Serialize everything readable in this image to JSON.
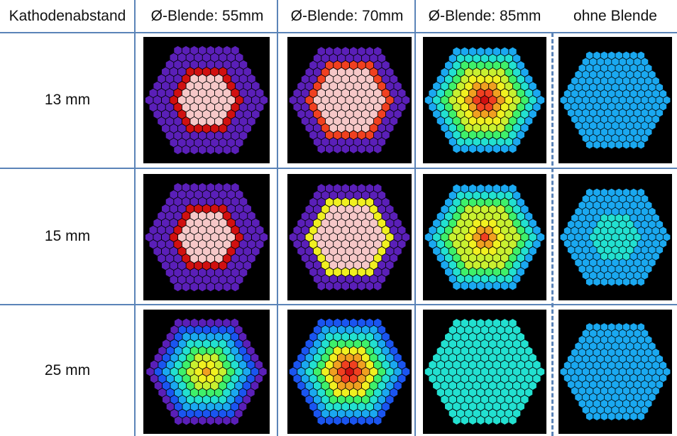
{
  "header": {
    "corner": "Kathodenabstand",
    "columns": [
      "Ø-Blende: 55mm",
      "Ø-Blende: 70mm",
      "Ø-Blende: 85mm",
      "ohne Blende"
    ]
  },
  "rows": [
    {
      "label": "13 mm"
    },
    {
      "label": "15 mm"
    },
    {
      "label": "25 mm"
    }
  ],
  "colors": {
    "background": "#000000",
    "grid_line": "#5b84b8",
    "scale": [
      "#3d1470",
      "#5a1fb8",
      "#1a55f0",
      "#1aa8f0",
      "#22e0d0",
      "#3ef06a",
      "#c8f030",
      "#f0f020",
      "#f0a020",
      "#f04020",
      "#d01010",
      "#f6c8c8"
    ]
  },
  "heatmaps": {
    "note_levels": "level per hex from 0 (dark purple) to 11 (pink saturated)",
    "cells": [
      [
        {
          "mode": "flat",
          "core": 11,
          "edge": 1,
          "r1": 0.55,
          "r2": 0.72
        },
        {
          "mode": "flat",
          "core": 11,
          "edge": 1,
          "r1": 0.68,
          "r2": 0.86
        },
        {
          "mode": "peak",
          "core": 10,
          "edge": 3,
          "r1": 0.0,
          "r2": 1.0
        },
        {
          "mode": "flat",
          "core": 3,
          "edge": 3,
          "r1": 0.0,
          "r2": 1.0
        }
      ],
      [
        {
          "mode": "flat",
          "core": 11,
          "edge": 1,
          "r1": 0.55,
          "r2": 0.72
        },
        {
          "mode": "flat",
          "core": 11,
          "edge": 1,
          "r1": 0.62,
          "r2": 0.84
        },
        {
          "mode": "peak",
          "core": 9,
          "edge": 3,
          "r1": 0.0,
          "r2": 1.0
        },
        {
          "mode": "flat",
          "core": 4,
          "edge": 3,
          "r1": 0.0,
          "r2": 1.0
        }
      ],
      [
        {
          "mode": "peak",
          "core": 8,
          "edge": 1,
          "r1": 0.0,
          "r2": 1.0
        },
        {
          "mode": "peak",
          "core": 10,
          "edge": 2,
          "r1": 0.0,
          "r2": 1.0
        },
        {
          "mode": "flat",
          "core": 4,
          "edge": 4,
          "r1": 0.0,
          "r2": 1.0
        },
        {
          "mode": "flat",
          "core": 3,
          "edge": 3,
          "r1": 0.0,
          "r2": 1.0
        }
      ]
    ]
  }
}
